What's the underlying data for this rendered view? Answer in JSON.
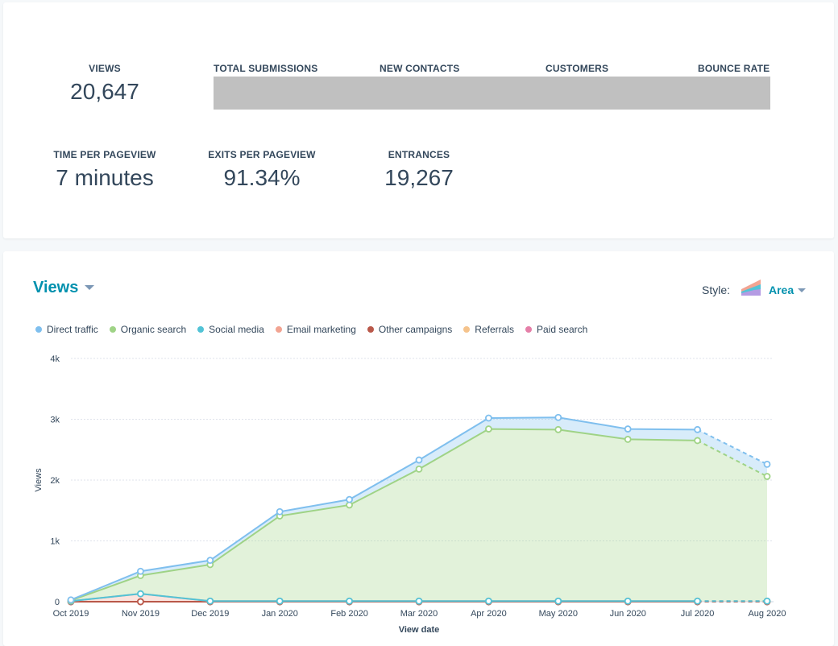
{
  "kpis": {
    "row1": [
      {
        "label": "VIEWS",
        "value": "20,647"
      },
      {
        "label": "TOTAL SUBMISSIONS",
        "value": ""
      },
      {
        "label": "NEW CONTACTS",
        "value": ""
      },
      {
        "label": "CUSTOMERS",
        "value": ""
      },
      {
        "label": "BOUNCE RATE",
        "value": ""
      }
    ],
    "row2": [
      {
        "label": "TIME PER PAGEVIEW",
        "value": "7 minutes"
      },
      {
        "label": "EXITS PER PAGEVIEW",
        "value": "91.34%"
      },
      {
        "label": "ENTRANCES",
        "value": "19,267"
      }
    ]
  },
  "chart_header": {
    "title": "Views",
    "style_label": "Style:",
    "style_value": "Area",
    "style_icon": "area-chart-icon"
  },
  "colors": {
    "direct": "#7fbfee",
    "organic": "#9fd386",
    "social": "#52c3d6",
    "email": "#f2a492",
    "other": "#b9584a",
    "referrals": "#f5c38c",
    "paid": "#e57fa8",
    "accent": "#0091ae",
    "redaction": "#c0c0c0"
  },
  "chart_data": {
    "type": "area",
    "stacked": true,
    "title": "Views",
    "xlabel": "View date",
    "ylabel": "Views",
    "ylim": [
      0,
      4000
    ],
    "yticks": [
      "0",
      "1k",
      "2k",
      "3k",
      "4k"
    ],
    "ytick_values": [
      0,
      1000,
      2000,
      3000,
      4000
    ],
    "categories": [
      "Oct 2019",
      "Nov 2019",
      "Dec 2019",
      "Jan 2020",
      "Feb 2020",
      "Mar 2020",
      "Apr 2020",
      "May 2020",
      "Jun 2020",
      "Jul 2020",
      "Aug 2020"
    ],
    "legend_position": "top-left",
    "grid": true,
    "last_segment_dashed": true,
    "series": [
      {
        "name": "Direct traffic",
        "color_key": "direct",
        "values": [
          10,
          70,
          70,
          70,
          90,
          150,
          180,
          200,
          170,
          180,
          200
        ]
      },
      {
        "name": "Organic search",
        "color_key": "organic",
        "values": [
          10,
          300,
          600,
          1400,
          1580,
          2170,
          2830,
          2820,
          2660,
          2640,
          2050
        ]
      },
      {
        "name": "Social media",
        "color_key": "social",
        "values": [
          0,
          0,
          0,
          0,
          0,
          0,
          0,
          0,
          0,
          0,
          0
        ]
      },
      {
        "name": "Email marketing",
        "color_key": "email",
        "values": [
          10,
          130,
          10,
          10,
          10,
          10,
          10,
          10,
          10,
          10,
          10
        ]
      },
      {
        "name": "Other campaigns",
        "color_key": "other",
        "values": [
          0,
          0,
          0,
          0,
          0,
          0,
          0,
          0,
          0,
          0,
          0
        ]
      },
      {
        "name": "Referrals",
        "color_key": "referrals",
        "values": [
          0,
          0,
          0,
          0,
          0,
          0,
          0,
          0,
          0,
          0,
          0
        ]
      },
      {
        "name": "Paid search",
        "color_key": "paid",
        "values": [
          0,
          0,
          0,
          0,
          0,
          0,
          0,
          0,
          0,
          0,
          0
        ]
      }
    ]
  }
}
